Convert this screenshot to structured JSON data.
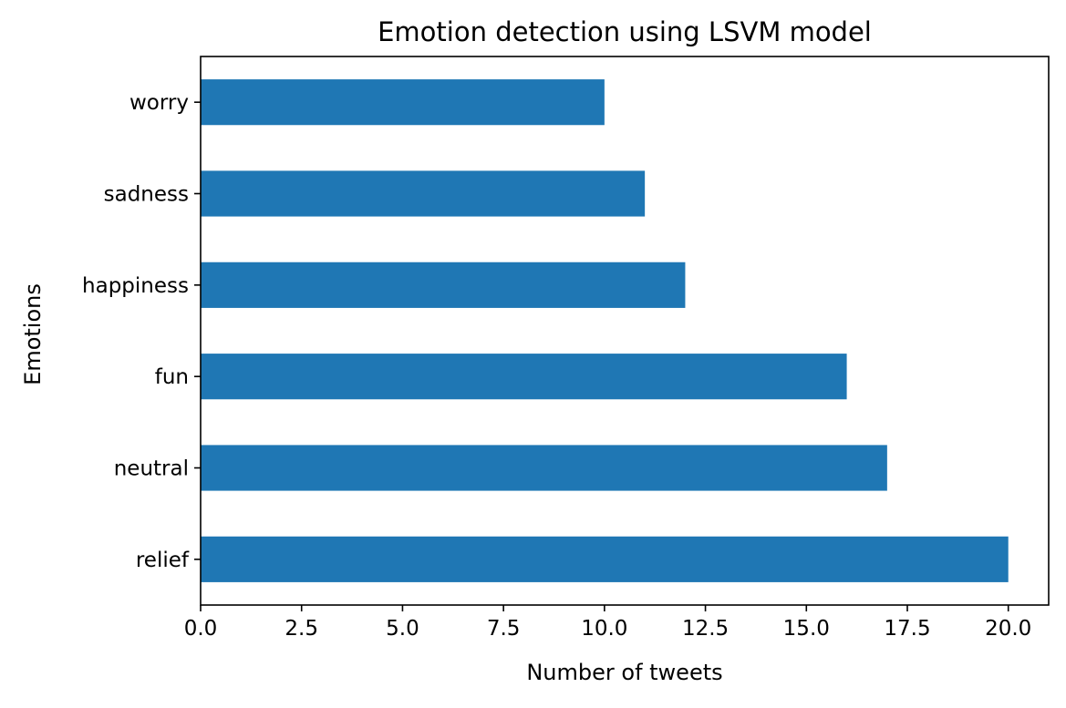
{
  "chart_data": {
    "type": "bar",
    "orientation": "horizontal",
    "title": "Emotion detection using LSVM model",
    "xlabel": "Number of tweets",
    "ylabel": "Emotions",
    "categories": [
      "relief",
      "neutral",
      "fun",
      "happiness",
      "sadness",
      "worry"
    ],
    "values": [
      20,
      17,
      16,
      12,
      11,
      10
    ],
    "xlim": [
      0,
      21
    ],
    "xticks": [
      0.0,
      2.5,
      5.0,
      7.5,
      10.0,
      12.5,
      15.0,
      17.5,
      20.0
    ],
    "xtick_labels": [
      "0.0",
      "2.5",
      "5.0",
      "7.5",
      "10.0",
      "12.5",
      "15.0",
      "17.5",
      "20.0"
    ],
    "bar_color": "#1f77b4",
    "grid": false,
    "legend": "none"
  }
}
